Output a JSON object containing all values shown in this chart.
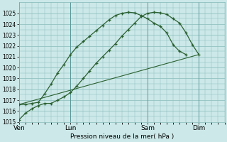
{
  "xlabel": "Pression niveau de la mer( hPa )",
  "ylim": [
    1015,
    1026
  ],
  "yticks": [
    1015,
    1016,
    1017,
    1018,
    1019,
    1020,
    1021,
    1022,
    1023,
    1024,
    1025
  ],
  "day_labels": [
    "Ven",
    "Lun",
    "Sam",
    "Dim"
  ],
  "day_positions": [
    0,
    48,
    120,
    168
  ],
  "xlim": [
    0,
    192
  ],
  "bg_color": "#cce8e8",
  "grid_color": "#88bbbb",
  "line_color": "#2a6030",
  "line1_x": [
    0,
    6,
    12,
    18,
    24,
    30,
    36,
    42,
    48,
    54,
    60,
    66,
    72,
    78,
    84,
    90,
    96,
    102,
    108,
    114,
    120,
    126,
    132,
    138,
    144,
    150,
    156,
    162,
    168
  ],
  "line1_y": [
    1015.2,
    1015.8,
    1016.2,
    1016.5,
    1016.7,
    1016.7,
    1017.0,
    1017.3,
    1017.7,
    1018.3,
    1019.0,
    1019.7,
    1020.4,
    1021.0,
    1021.6,
    1022.2,
    1022.9,
    1023.5,
    1024.1,
    1024.7,
    1025.0,
    1025.1,
    1025.05,
    1024.9,
    1024.5,
    1024.1,
    1023.2,
    1022.1,
    1021.2
  ],
  "line2_x": [
    0,
    6,
    12,
    18,
    24,
    30,
    36,
    42,
    48,
    54,
    60,
    66,
    72,
    78,
    84,
    90,
    96,
    102,
    108,
    114,
    120,
    126,
    132,
    138,
    144,
    150,
    156
  ],
  "line2_y": [
    1016.6,
    1016.6,
    1016.7,
    1016.8,
    1017.6,
    1018.5,
    1019.5,
    1020.3,
    1021.2,
    1021.9,
    1022.4,
    1022.9,
    1023.4,
    1023.9,
    1024.4,
    1024.8,
    1025.0,
    1025.1,
    1025.05,
    1024.8,
    1024.5,
    1024.1,
    1023.8,
    1023.2,
    1022.1,
    1021.5,
    1021.2
  ],
  "line3_x": [
    0,
    168
  ],
  "line3_y": [
    1016.6,
    1021.2
  ]
}
